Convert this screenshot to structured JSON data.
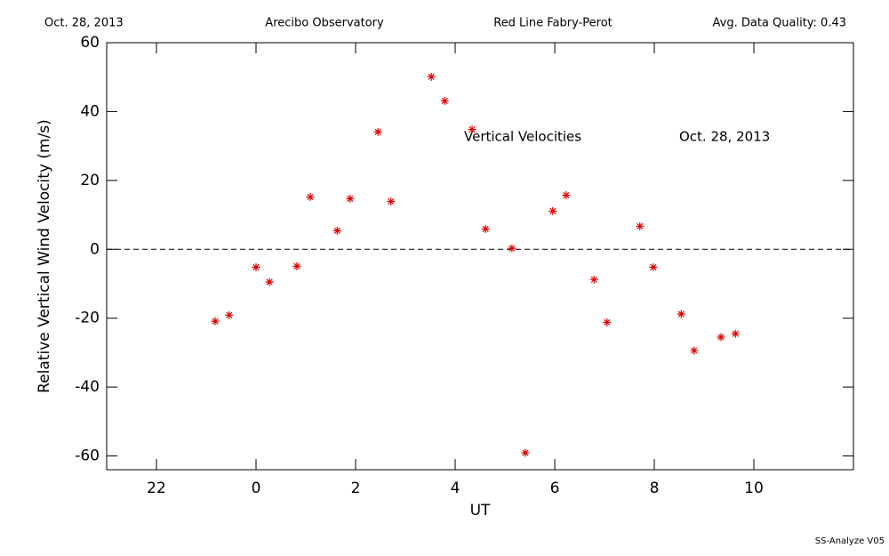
{
  "header": {
    "date": "Oct. 28, 2013",
    "site": "Arecibo Observatory",
    "instrument": "Red Line Fabry-Perot",
    "quality": "Avg. Data Quality: 0.43"
  },
  "footer": "SS-Analyze V05",
  "chart_data": {
    "type": "scatter",
    "title": "Vertical Velocities",
    "annotation": "Oct. 28, 2013",
    "x_label": "UT",
    "y_label": "Relative Vertical Wind Velocity (m/s)",
    "color": "#e00000",
    "marker": "asterisk",
    "x": [
      -0.82,
      -0.54,
      0,
      0.27,
      0.82,
      1.09,
      1.63,
      1.89,
      2.45,
      2.71,
      3.52,
      3.79,
      4.34,
      4.61,
      5.14,
      5.41,
      5.96,
      6.23,
      6.79,
      7.05,
      7.71,
      7.98,
      8.54,
      8.8,
      9.34,
      9.63
    ],
    "values": [
      -20.9,
      -19.1,
      -5.2,
      -9.5,
      -4.9,
      15.2,
      5.4,
      14.7,
      34.1,
      13.9,
      50.1,
      43.1,
      34.8,
      5.9,
      0.3,
      -59.1,
      11.1,
      15.7,
      -8.8,
      -21.2,
      6.7,
      -5.2,
      -18.8,
      -29.4,
      -25.5,
      -24.5
    ],
    "xlim": [
      -3,
      12
    ],
    "xticks": [
      {
        "value": -2,
        "label": "22"
      },
      0,
      2,
      4,
      6,
      8,
      10
    ],
    "ylim": [
      -64,
      60
    ],
    "yticks": [
      -60,
      -40,
      -20,
      0,
      20,
      40,
      60
    ],
    "hline": 0
  }
}
